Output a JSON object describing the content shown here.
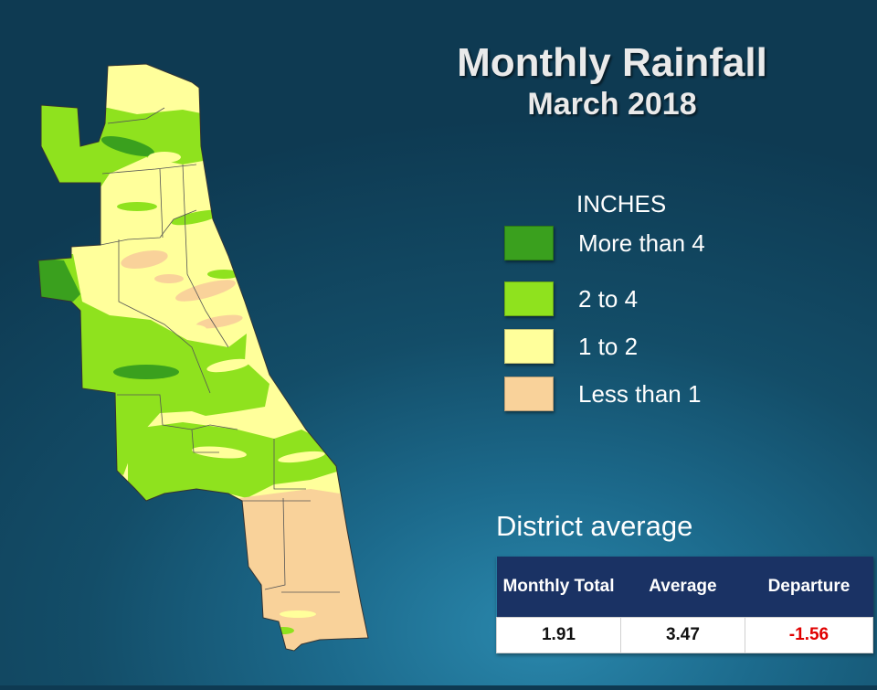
{
  "title": "Monthly Rainfall",
  "subtitle": "March 2018",
  "legend": {
    "heading": "INCHES",
    "items": [
      {
        "label": "More than 4",
        "color": "#3aa01e"
      },
      {
        "label": "2 to 4",
        "color": "#8fe21e"
      },
      {
        "label": "1 to 2",
        "color": "#ffff9b"
      },
      {
        "label": "Less than 1",
        "color": "#f9d29a"
      }
    ]
  },
  "district": {
    "heading": "District average",
    "columns": [
      "Monthly Total",
      "Average",
      "Departure"
    ],
    "values": [
      "1.91",
      "3.47",
      "-1.56"
    ],
    "departure_color": "#e00000"
  },
  "map": {
    "border_color": "#555555"
  }
}
